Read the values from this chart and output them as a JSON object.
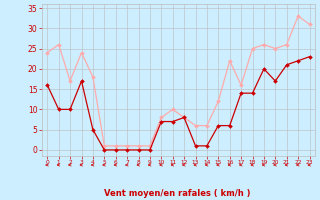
{
  "hours": [
    0,
    1,
    2,
    3,
    4,
    5,
    6,
    7,
    8,
    9,
    10,
    11,
    12,
    13,
    14,
    15,
    16,
    17,
    18,
    19,
    20,
    21,
    22,
    23
  ],
  "wind_avg": [
    16,
    10,
    10,
    17,
    5,
    0,
    0,
    0,
    0,
    0,
    7,
    7,
    8,
    1,
    1,
    6,
    6,
    14,
    14,
    20,
    17,
    21,
    22,
    23
  ],
  "wind_gust": [
    24,
    26,
    17,
    24,
    18,
    1,
    1,
    1,
    1,
    1,
    8,
    10,
    8,
    6,
    6,
    12,
    22,
    16,
    25,
    26,
    25,
    26,
    33,
    31
  ],
  "wind_avg_color": "#cc0000",
  "wind_gust_color": "#ffaaaa",
  "bg_color": "#cceeff",
  "grid_color": "#bbbbbb",
  "xlabel": "Vent moyen/en rafales ( km/h )",
  "xlabel_color": "#cc0000",
  "ylabel_ticks": [
    0,
    5,
    10,
    15,
    20,
    25,
    30,
    35
  ],
  "ylim": [
    -1.5,
    36
  ],
  "xlim": [
    -0.5,
    23.5
  ],
  "arrow_color": "#cc0000",
  "tick_color": "#cc0000",
  "markersize": 2.0,
  "linewidth": 0.9
}
